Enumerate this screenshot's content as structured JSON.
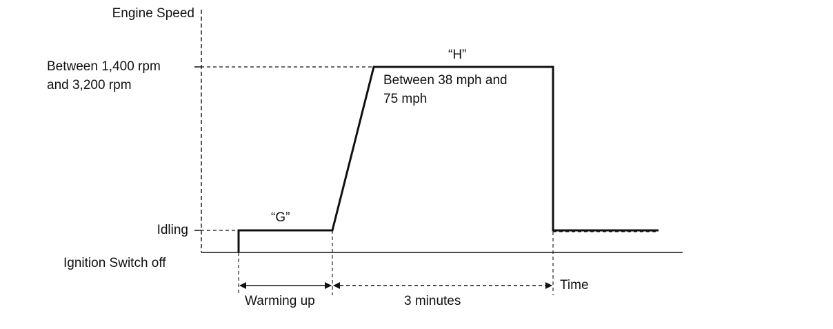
{
  "diagram": {
    "y_axis_label": "Engine Speed",
    "x_axis_label": "Time",
    "levels": {
      "high_line1": "Between 1,400 rpm",
      "high_line2": "and 3,200 rpm",
      "idle": "Idling",
      "off": "Ignition Switch off"
    },
    "phases": {
      "g_label": "“G”",
      "h_label": "“H”",
      "h_speed_line1": "Between 38 mph and",
      "h_speed_line2": "75 mph",
      "warmup_label": "Warming up",
      "duration_label": "3 minutes"
    },
    "colors": {
      "line": "#111111",
      "background": "#ffffff"
    }
  }
}
